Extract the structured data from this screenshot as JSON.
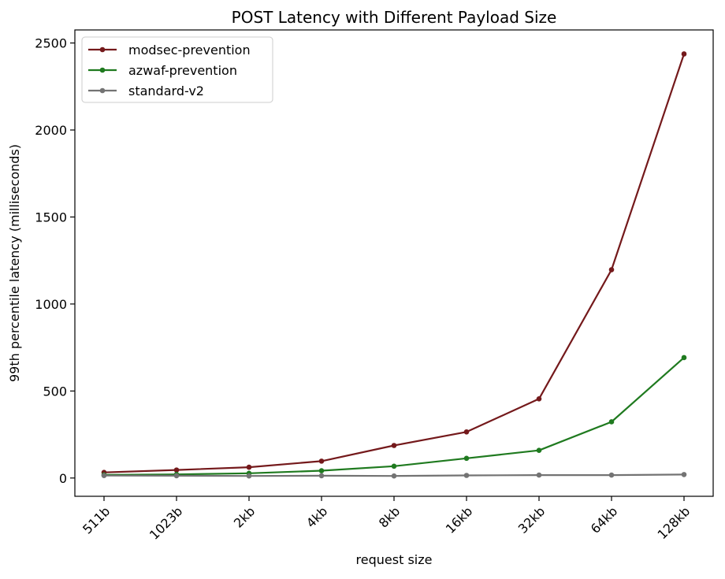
{
  "chart_data": {
    "type": "line",
    "title": "POST Latency with Different Payload Size",
    "xlabel": "request size",
    "ylabel": "99th percentile latency (milliseconds)",
    "categories": [
      "511b",
      "1023b",
      "2kb",
      "4kb",
      "8kb",
      "16kb",
      "32kb",
      "64kb",
      "128kb"
    ],
    "ylim": [
      -105,
      2575
    ],
    "yticks": [
      0,
      500,
      1000,
      1500,
      2000,
      2500
    ],
    "grid": false,
    "legend_position": "top-left",
    "series": [
      {
        "name": "modsec-prevention",
        "color": "#74191b",
        "values": [
          32,
          46,
          62,
          97,
          187,
          265,
          455,
          1197,
          2437
        ]
      },
      {
        "name": "azwaf-prevention",
        "color": "#1f7a1f",
        "values": [
          18,
          21,
          27,
          42,
          68,
          113,
          159,
          323,
          692
        ]
      },
      {
        "name": "standard-v2",
        "color": "#737373",
        "values": [
          14,
          13,
          12,
          13,
          12,
          15,
          17,
          17,
          20
        ]
      }
    ]
  }
}
